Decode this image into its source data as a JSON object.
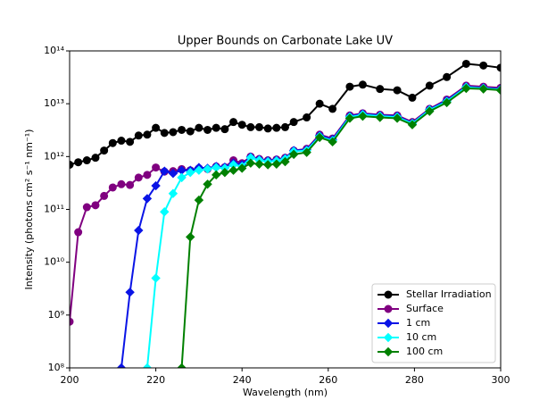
{
  "chart_data": {
    "type": "line",
    "title": "Upper Bounds on Carbonate Lake UV",
    "xlabel": "Wavelength (nm)",
    "ylabel": "Intensity (photons cm² s⁻¹ nm⁻¹)",
    "x": [
      200,
      202,
      204,
      206,
      208,
      210,
      212,
      214,
      216,
      218,
      220,
      222,
      224,
      226,
      228,
      230,
      232,
      234,
      236,
      238,
      240,
      242,
      244,
      246,
      248,
      250,
      252,
      255,
      258,
      261,
      265,
      268,
      272,
      276,
      279.5,
      283.5,
      287.5,
      292,
      296,
      300
    ],
    "xlim": [
      200,
      300
    ],
    "xticks": [
      200,
      220,
      240,
      260,
      280,
      300
    ],
    "ylim": [
      100000000,
      100000000000000
    ],
    "yscale": "log",
    "yticks": [
      {
        "value": 100000000,
        "label": "10⁸"
      },
      {
        "value": 1000000000,
        "label": "10⁹"
      },
      {
        "value": 10000000000,
        "label": "10¹⁰"
      },
      {
        "value": 100000000000,
        "label": "10¹¹"
      },
      {
        "value": 1000000000000,
        "label": "10¹²"
      },
      {
        "value": 10000000000000,
        "label": "10¹³"
      },
      {
        "value": 100000000000000,
        "label": "10¹⁴"
      }
    ],
    "legend": "lower right",
    "series": [
      {
        "name": "Stellar Irradiation",
        "color": "#000000",
        "marker": "circle",
        "values": [
          700000000000.0,
          780000000000.0,
          850000000000.0,
          950000000000.0,
          1300000000000.0,
          1800000000000.0,
          2000000000000.0,
          1900000000000.0,
          2500000000000.0,
          2600000000000.0,
          3500000000000.0,
          2800000000000.0,
          2900000000000.0,
          3200000000000.0,
          3000000000000.0,
          3500000000000.0,
          3200000000000.0,
          3500000000000.0,
          3300000000000.0,
          4500000000000.0,
          4000000000000.0,
          3600000000000.0,
          3600000000000.0,
          3400000000000.0,
          3500000000000.0,
          3600000000000.0,
          4500000000000.0,
          5500000000000.0,
          10000000000000.0,
          8000000000000.0,
          21000000000000.0,
          23000000000000.0,
          19000000000000.0,
          18000000000000.0,
          13000000000000.0,
          22000000000000.0,
          32000000000000.0,
          57000000000000.0,
          53000000000000.0,
          48000000000000.0
        ]
      },
      {
        "name": "Surface",
        "color": "#800080",
        "marker": "circle",
        "values": [
          750000000.0,
          37000000000.0,
          110000000000.0,
          120000000000.0,
          180000000000.0,
          260000000000.0,
          300000000000.0,
          290000000000.0,
          400000000000.0,
          450000000000.0,
          620000000000.0,
          520000000000.0,
          530000000000.0,
          580000000000.0,
          550000000000.0,
          600000000000.0,
          580000000000.0,
          650000000000.0,
          630000000000.0,
          850000000000.0,
          750000000000.0,
          1000000000000.0,
          900000000000.0,
          850000000000.0,
          880000000000.0,
          950000000000.0,
          1300000000000.0,
          1400000000000.0,
          2600000000000.0,
          2200000000000.0,
          6000000000000.0,
          6600000000000.0,
          6200000000000.0,
          6000000000000.0,
          4500000000000.0,
          8000000000000.0,
          12000000000000.0,
          22000000000000.0,
          21000000000000.0,
          20000000000000.0
        ]
      },
      {
        "name": "1 cm",
        "color": "#0a14e6",
        "marker": "diamond",
        "values": [
          null,
          null,
          null,
          null,
          null,
          null,
          100000000.0,
          2700000000.0,
          40000000000.0,
          160000000000.0,
          280000000000.0,
          530000000000.0,
          480000000000.0,
          550000000000.0,
          550000000000.0,
          620000000000.0,
          600000000000.0,
          650000000000.0,
          630000000000.0,
          750000000000.0,
          700000000000.0,
          980000000000.0,
          880000000000.0,
          830000000000.0,
          860000000000.0,
          930000000000.0,
          1300000000000.0,
          1350000000000.0,
          2500000000000.0,
          2100000000000.0,
          5800000000000.0,
          6400000000000.0,
          6000000000000.0,
          5800000000000.0,
          4300000000000.0,
          7800000000000.0,
          11500000000000.0,
          21000000000000.0,
          20000000000000.0,
          19000000000000.0
        ]
      },
      {
        "name": "10 cm",
        "color": "#00ffff",
        "marker": "diamond",
        "values": [
          null,
          null,
          null,
          null,
          null,
          null,
          null,
          null,
          null,
          100000000.0,
          5000000000.0,
          90000000000.0,
          200000000000.0,
          400000000000.0,
          500000000000.0,
          550000000000.0,
          580000000000.0,
          620000000000.0,
          600000000000.0,
          700000000000.0,
          650000000000.0,
          950000000000.0,
          850000000000.0,
          800000000000.0,
          830000000000.0,
          900000000000.0,
          1250000000000.0,
          1300000000000.0,
          2400000000000.0,
          2000000000000.0,
          5600000000000.0,
          6200000000000.0,
          5800000000000.0,
          5600000000000.0,
          4200000000000.0,
          7600000000000.0,
          11000000000000.0,
          20500000000000.0,
          19500000000000.0,
          18500000000000.0
        ]
      },
      {
        "name": "100 cm",
        "color": "#008000",
        "marker": "diamond",
        "values": [
          null,
          null,
          null,
          null,
          null,
          null,
          null,
          null,
          null,
          null,
          null,
          null,
          null,
          100000000.0,
          30000000000.0,
          150000000000.0,
          300000000000.0,
          450000000000.0,
          500000000000.0,
          550000000000.0,
          600000000000.0,
          750000000000.0,
          720000000000.0,
          700000000000.0,
          720000000000.0,
          800000000000.0,
          1100000000000.0,
          1200000000000.0,
          2300000000000.0,
          1900000000000.0,
          5300000000000.0,
          5800000000000.0,
          5500000000000.0,
          5300000000000.0,
          4000000000000.0,
          7200000000000.0,
          10500000000000.0,
          19500000000000.0,
          19000000000000.0,
          18000000000000.0
        ]
      }
    ]
  }
}
